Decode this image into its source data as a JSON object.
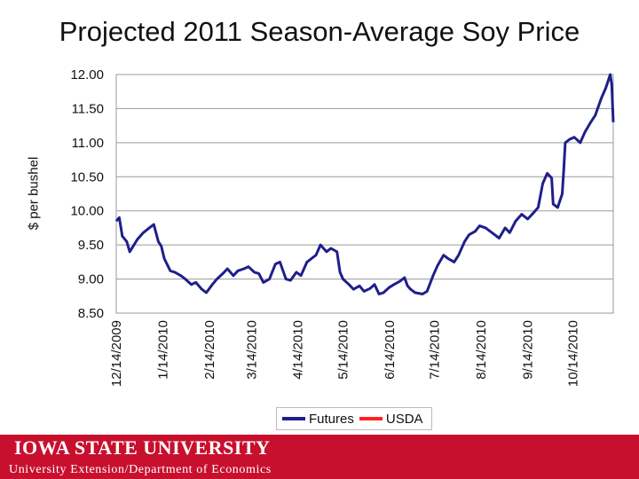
{
  "chart_data": {
    "type": "line",
    "title": "Projected 2011 Season-Average Soy Price",
    "ylabel": "$ per bushel",
    "xlabel": "",
    "ylim": [
      8.5,
      12.0
    ],
    "yticks": [
      "12.00",
      "11.50",
      "11.00",
      "10.50",
      "10.00",
      "9.50",
      "9.00",
      "8.50"
    ],
    "xticks": [
      "12/14/2009",
      "1/14/2010",
      "2/14/2010",
      "3/14/2010",
      "4/14/2010",
      "5/14/2010",
      "6/14/2010",
      "7/14/2010",
      "8/14/2010",
      "9/14/2010",
      "10/14/2010"
    ],
    "grid": true,
    "legend_position": "bottom",
    "series": [
      {
        "name": "Futures",
        "color": "#1f1f8a",
        "points": [
          [
            "2009-12-14",
            9.85
          ],
          [
            "2009-12-16",
            9.9
          ],
          [
            "2009-12-18",
            9.63
          ],
          [
            "2009-12-21",
            9.55
          ],
          [
            "2009-12-23",
            9.4
          ],
          [
            "2009-12-28",
            9.58
          ],
          [
            "2010-01-01",
            9.68
          ],
          [
            "2010-01-05",
            9.75
          ],
          [
            "2010-01-08",
            9.8
          ],
          [
            "2010-01-11",
            9.55
          ],
          [
            "2010-01-13",
            9.48
          ],
          [
            "2010-01-15",
            9.3
          ],
          [
            "2010-01-19",
            9.12
          ],
          [
            "2010-01-22",
            9.1
          ],
          [
            "2010-01-26",
            9.05
          ],
          [
            "2010-01-29",
            9.0
          ],
          [
            "2010-02-02",
            8.92
          ],
          [
            "2010-02-05",
            8.95
          ],
          [
            "2010-02-09",
            8.85
          ],
          [
            "2010-02-12",
            8.8
          ],
          [
            "2010-02-16",
            8.92
          ],
          [
            "2010-02-19",
            9.0
          ],
          [
            "2010-02-23",
            9.08
          ],
          [
            "2010-02-26",
            9.15
          ],
          [
            "2010-03-02",
            9.05
          ],
          [
            "2010-03-05",
            9.12
          ],
          [
            "2010-03-09",
            9.15
          ],
          [
            "2010-03-12",
            9.18
          ],
          [
            "2010-03-16",
            9.1
          ],
          [
            "2010-03-19",
            9.08
          ],
          [
            "2010-03-22",
            8.95
          ],
          [
            "2010-03-26",
            9.0
          ],
          [
            "2010-03-30",
            9.22
          ],
          [
            "2010-04-02",
            9.25
          ],
          [
            "2010-04-06",
            9.0
          ],
          [
            "2010-04-09",
            8.98
          ],
          [
            "2010-04-13",
            9.1
          ],
          [
            "2010-04-16",
            9.05
          ],
          [
            "2010-04-20",
            9.25
          ],
          [
            "2010-04-23",
            9.3
          ],
          [
            "2010-04-26",
            9.35
          ],
          [
            "2010-04-29",
            9.5
          ],
          [
            "2010-05-03",
            9.4
          ],
          [
            "2010-05-06",
            9.45
          ],
          [
            "2010-05-10",
            9.4
          ],
          [
            "2010-05-12",
            9.1
          ],
          [
            "2010-05-14",
            9.0
          ],
          [
            "2010-05-18",
            8.92
          ],
          [
            "2010-05-21",
            8.85
          ],
          [
            "2010-05-25",
            8.9
          ],
          [
            "2010-05-28",
            8.82
          ],
          [
            "2010-06-01",
            8.86
          ],
          [
            "2010-06-04",
            8.92
          ],
          [
            "2010-06-07",
            8.78
          ],
          [
            "2010-06-10",
            8.8
          ],
          [
            "2010-06-14",
            8.88
          ],
          [
            "2010-06-17",
            8.92
          ],
          [
            "2010-06-21",
            8.97
          ],
          [
            "2010-06-24",
            9.02
          ],
          [
            "2010-06-26",
            8.9
          ],
          [
            "2010-06-28",
            8.85
          ],
          [
            "2010-07-01",
            8.8
          ],
          [
            "2010-07-06",
            8.78
          ],
          [
            "2010-07-09",
            8.82
          ],
          [
            "2010-07-13",
            9.05
          ],
          [
            "2010-07-16",
            9.2
          ],
          [
            "2010-07-20",
            9.35
          ],
          [
            "2010-07-23",
            9.3
          ],
          [
            "2010-07-27",
            9.25
          ],
          [
            "2010-07-30",
            9.35
          ],
          [
            "2010-08-03",
            9.55
          ],
          [
            "2010-08-06",
            9.65
          ],
          [
            "2010-08-10",
            9.7
          ],
          [
            "2010-08-13",
            9.78
          ],
          [
            "2010-08-17",
            9.75
          ],
          [
            "2010-08-20",
            9.7
          ],
          [
            "2010-08-23",
            9.65
          ],
          [
            "2010-08-26",
            9.6
          ],
          [
            "2010-08-30",
            9.75
          ],
          [
            "2010-09-02",
            9.68
          ],
          [
            "2010-09-06",
            9.85
          ],
          [
            "2010-09-10",
            9.95
          ],
          [
            "2010-09-14",
            9.88
          ],
          [
            "2010-09-17",
            9.95
          ],
          [
            "2010-09-21",
            10.05
          ],
          [
            "2010-09-24",
            10.4
          ],
          [
            "2010-09-27",
            10.55
          ],
          [
            "2010-09-30",
            10.48
          ],
          [
            "2010-10-01",
            10.1
          ],
          [
            "2010-10-04",
            10.05
          ],
          [
            "2010-10-07",
            10.25
          ],
          [
            "2010-10-08",
            10.6
          ],
          [
            "2010-10-09",
            11.0
          ],
          [
            "2010-10-12",
            11.05
          ],
          [
            "2010-10-15",
            11.08
          ],
          [
            "2010-10-19",
            11.0
          ],
          [
            "2010-10-22",
            11.15
          ],
          [
            "2010-10-26",
            11.3
          ],
          [
            "2010-10-29",
            11.4
          ],
          [
            "2010-11-02",
            11.65
          ],
          [
            "2010-11-05",
            11.8
          ],
          [
            "2010-11-08",
            12.0
          ],
          [
            "2010-11-09",
            11.85
          ],
          [
            "2010-11-10",
            11.3
          ]
        ]
      },
      {
        "name": "USDA",
        "color": "#ff2020",
        "points": []
      }
    ]
  },
  "footer": {
    "university": "Iowa State University",
    "department": "University Extension/Department of Economics"
  }
}
